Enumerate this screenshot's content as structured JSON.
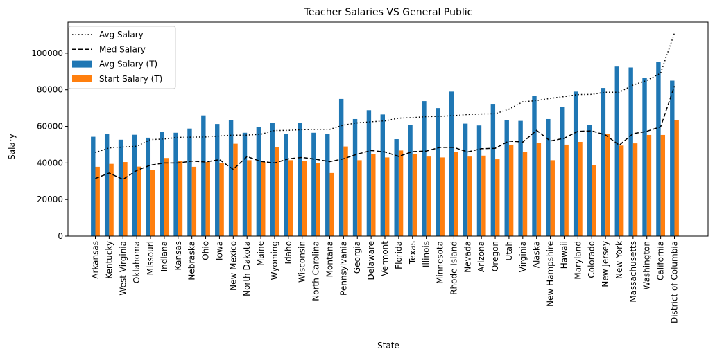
{
  "chart_data": {
    "type": "bar",
    "title": "Teacher Salaries VS General Public",
    "xlabel": "State",
    "ylabel": "Salary",
    "ylim": [
      0,
      117000
    ],
    "yticks": [
      0,
      20000,
      40000,
      60000,
      80000,
      100000
    ],
    "grid": false,
    "legend_position": "top-left",
    "categories": [
      "Arkansas",
      "Kentucky",
      "West Virginia",
      "Oklahoma",
      "Missouri",
      "Indiana",
      "Kansas",
      "Nebraska",
      "Ohio",
      "Iowa",
      "New Mexico",
      "North Dakota",
      "Maine",
      "Wyoming",
      "Idaho",
      "Wisconsin",
      "North Carolina",
      "Montana",
      "Pennsylvania",
      "Georgia",
      "Delaware",
      "Vermont",
      "Florida",
      "Texas",
      "Illinois",
      "Minnesota",
      "Rhode Island",
      "Nevada",
      "Arizona",
      "Oregon",
      "Utah",
      "Virginia",
      "Alaska",
      "New Hampshire",
      "Hawaii",
      "Maryland",
      "Colorado",
      "New Jersey",
      "New York",
      "Massachusetts",
      "Washington",
      "California",
      "District of Columbia"
    ],
    "bar_series": [
      {
        "name": "Avg Salary (T)",
        "color": "#1f77b4",
        "values": [
          54300,
          56000,
          52700,
          55400,
          53800,
          56800,
          56500,
          58800,
          66000,
          61300,
          63300,
          56500,
          59800,
          62000,
          56000,
          62000,
          56500,
          55800,
          75000,
          64000,
          68800,
          66500,
          53000,
          60800,
          73800,
          70000,
          79000,
          61500,
          60500,
          72300,
          63500,
          63000,
          76500,
          64000,
          70600,
          79000,
          60800,
          81000,
          92700,
          92200,
          86700,
          95300,
          85000
        ]
      },
      {
        "name": "Start Salary (T)",
        "color": "#ff7f0e",
        "values": [
          37900,
          39500,
          40500,
          38000,
          36200,
          42700,
          40900,
          37900,
          40500,
          39800,
          50500,
          41500,
          40500,
          48500,
          41500,
          41000,
          40000,
          34500,
          49000,
          41500,
          45000,
          43000,
          46800,
          45000,
          43500,
          43000,
          46000,
          43500,
          44000,
          42000,
          50000,
          46000,
          51000,
          41500,
          50000,
          51500,
          38900,
          56000,
          49500,
          50700,
          55300,
          55300,
          63500
        ]
      }
    ],
    "line_series": [
      {
        "name": "Avg Salary",
        "style": "dotted",
        "color": "#000000",
        "values": [
          45700,
          48200,
          48700,
          49100,
          52800,
          53100,
          54000,
          54100,
          54200,
          54700,
          55200,
          55200,
          55700,
          57700,
          57800,
          58200,
          58400,
          58400,
          60700,
          61900,
          62500,
          63000,
          64500,
          64800,
          65300,
          65500,
          65900,
          66500,
          66800,
          66900,
          69400,
          73400,
          74100,
          75300,
          76300,
          77400,
          77500,
          78700,
          78700,
          82600,
          85100,
          89100,
          111000
        ]
      },
      {
        "name": "Med Salary",
        "style": "dashed",
        "color": "#000000",
        "values": [
          31500,
          34500,
          31000,
          35900,
          38800,
          40000,
          40000,
          41000,
          40500,
          41800,
          36500,
          43500,
          40800,
          40000,
          42200,
          43000,
          42000,
          40700,
          42300,
          44800,
          46800,
          46000,
          43600,
          46200,
          46500,
          48500,
          48500,
          46000,
          47800,
          48000,
          52000,
          51400,
          57800,
          52000,
          53500,
          57300,
          57500,
          55300,
          49700,
          56000,
          57300,
          59800,
          82000
        ]
      }
    ]
  }
}
